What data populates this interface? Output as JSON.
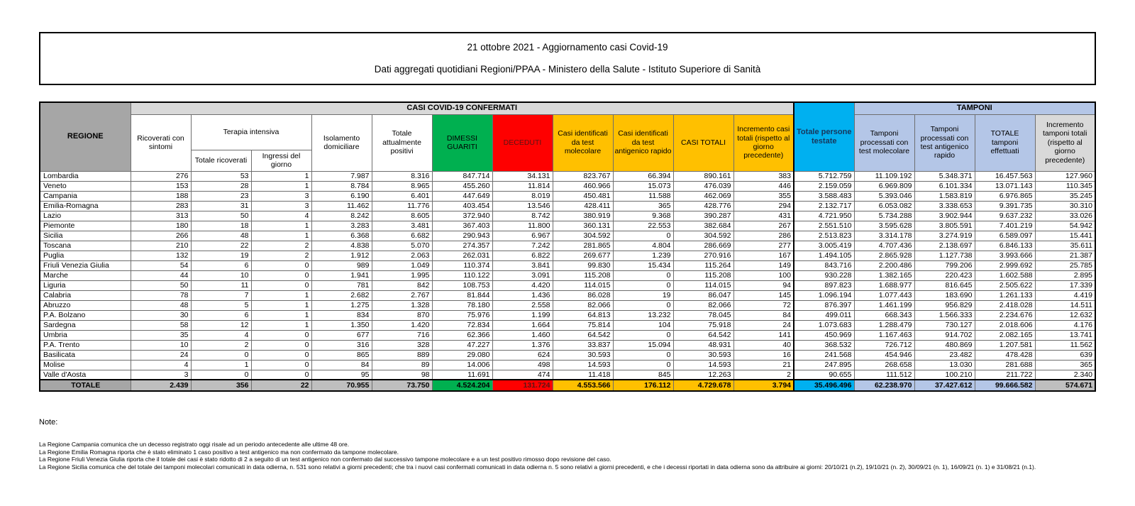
{
  "title": {
    "line1": "21 ottobre 2021 - Aggiornamento casi Covid-19",
    "line2": "Dati aggregati quotidiani Regioni/PPAA - Ministero della Salute - Istituto Superiore di Sanità"
  },
  "colors": {
    "green": "#00B050",
    "red": "#FE0000",
    "gold": "#FFC000",
    "cyan": "#00B0F0",
    "periwinkle": "#B4C6E7",
    "header_gray": "#D9D9D9",
    "region_gray": "#A6A6A6",
    "total_gray": "#BFBFBF"
  },
  "table": {
    "group_headers": {
      "regione": "REGIONE",
      "casi": "CASI COVID-19 CONFERMATI",
      "persone_testate": "Totale persone testate",
      "tamponi": "TAMPONI",
      "terapia_intensiva": "Terapia intensiva"
    },
    "columns": [
      "Ricoverati con sintomi",
      "Totale ricoverati",
      "Ingressi del giorno",
      "Isolamento domiciliare",
      "Totale attualmente positivi",
      "DIMESSI GUARITI",
      "DECEDUTI",
      "Casi identificati da test molecolare",
      "Casi identificati da test antigenico rapido",
      "CASI TOTALI",
      "Incremento casi totali (rispetto al giorno precedente)",
      "Tamponi processati con test molecolare",
      "Tamponi processati con test antigenico rapido",
      "TOTALE tamponi effettuati",
      "Incremento tamponi totali (rispetto al giorno precedente)"
    ],
    "rows": [
      {
        "region": "Lombardia",
        "values": [
          "276",
          "53",
          "1",
          "7.987",
          "8.316",
          "847.714",
          "34.131",
          "823.767",
          "66.394",
          "890.161",
          "383",
          "5.712.759",
          "11.109.192",
          "5.348.371",
          "16.457.563",
          "127.960"
        ]
      },
      {
        "region": "Veneto",
        "values": [
          "153",
          "28",
          "1",
          "8.784",
          "8.965",
          "455.260",
          "11.814",
          "460.966",
          "15.073",
          "476.039",
          "446",
          "2.159.059",
          "6.969.809",
          "6.101.334",
          "13.071.143",
          "110.345"
        ]
      },
      {
        "region": "Campania",
        "values": [
          "188",
          "23",
          "3",
          "6.190",
          "6.401",
          "447.649",
          "8.019",
          "450.481",
          "11.588",
          "462.069",
          "355",
          "3.588.483",
          "5.393.046",
          "1.583.819",
          "6.976.865",
          "35.245"
        ]
      },
      {
        "region": "Emilia-Romagna",
        "values": [
          "283",
          "31",
          "3",
          "11.462",
          "11.776",
          "403.454",
          "13.546",
          "428.411",
          "365",
          "428.776",
          "294",
          "2.132.717",
          "6.053.082",
          "3.338.653",
          "9.391.735",
          "30.310"
        ]
      },
      {
        "region": "Lazio",
        "values": [
          "313",
          "50",
          "4",
          "8.242",
          "8.605",
          "372.940",
          "8.742",
          "380.919",
          "9.368",
          "390.287",
          "431",
          "4.721.950",
          "5.734.288",
          "3.902.944",
          "9.637.232",
          "33.026"
        ]
      },
      {
        "region": "Piemonte",
        "values": [
          "180",
          "18",
          "1",
          "3.283",
          "3.481",
          "367.403",
          "11.800",
          "360.131",
          "22.553",
          "382.684",
          "267",
          "2.551.510",
          "3.595.628",
          "3.805.591",
          "7.401.219",
          "54.942"
        ]
      },
      {
        "region": "Sicilia",
        "values": [
          "266",
          "48",
          "1",
          "6.368",
          "6.682",
          "290.943",
          "6.967",
          "304.592",
          "0",
          "304.592",
          "286",
          "2.513.823",
          "3.314.178",
          "3.274.919",
          "6.589.097",
          "15.441"
        ]
      },
      {
        "region": "Toscana",
        "values": [
          "210",
          "22",
          "2",
          "4.838",
          "5.070",
          "274.357",
          "7.242",
          "281.865",
          "4.804",
          "286.669",
          "277",
          "3.005.419",
          "4.707.436",
          "2.138.697",
          "6.846.133",
          "35.611"
        ]
      },
      {
        "region": "Puglia",
        "values": [
          "132",
          "19",
          "2",
          "1.912",
          "2.063",
          "262.031",
          "6.822",
          "269.677",
          "1.239",
          "270.916",
          "167",
          "1.494.105",
          "2.865.928",
          "1.127.738",
          "3.993.666",
          "21.387"
        ]
      },
      {
        "region": "Friuli Venezia Giulia",
        "values": [
          "54",
          "6",
          "0",
          "989",
          "1.049",
          "110.374",
          "3.841",
          "99.830",
          "15.434",
          "115.264",
          "149",
          "843.716",
          "2.200.486",
          "799.206",
          "2.999.692",
          "25.785"
        ]
      },
      {
        "region": "Marche",
        "values": [
          "44",
          "10",
          "0",
          "1.941",
          "1.995",
          "110.122",
          "3.091",
          "115.208",
          "0",
          "115.208",
          "100",
          "930.228",
          "1.382.165",
          "220.423",
          "1.602.588",
          "2.895"
        ]
      },
      {
        "region": "Liguria",
        "values": [
          "50",
          "11",
          "0",
          "781",
          "842",
          "108.753",
          "4.420",
          "114.015",
          "0",
          "114.015",
          "94",
          "897.823",
          "1.688.977",
          "816.645",
          "2.505.622",
          "17.339"
        ]
      },
      {
        "region": "Calabria",
        "values": [
          "78",
          "7",
          "1",
          "2.682",
          "2.767",
          "81.844",
          "1.436",
          "86.028",
          "19",
          "86.047",
          "145",
          "1.096.194",
          "1.077.443",
          "183.690",
          "1.261.133",
          "4.419"
        ]
      },
      {
        "region": "Abruzzo",
        "values": [
          "48",
          "5",
          "1",
          "1.275",
          "1.328",
          "78.180",
          "2.558",
          "82.066",
          "0",
          "82.066",
          "72",
          "876.397",
          "1.461.199",
          "956.829",
          "2.418.028",
          "14.511"
        ]
      },
      {
        "region": "P.A. Bolzano",
        "values": [
          "30",
          "6",
          "1",
          "834",
          "870",
          "75.976",
          "1.199",
          "64.813",
          "13.232",
          "78.045",
          "84",
          "499.011",
          "668.343",
          "1.566.333",
          "2.234.676",
          "12.632"
        ]
      },
      {
        "region": "Sardegna",
        "values": [
          "58",
          "12",
          "1",
          "1.350",
          "1.420",
          "72.834",
          "1.664",
          "75.814",
          "104",
          "75.918",
          "24",
          "1.073.683",
          "1.288.479",
          "730.127",
          "2.018.606",
          "4.176"
        ]
      },
      {
        "region": "Umbria",
        "values": [
          "35",
          "4",
          "0",
          "677",
          "716",
          "62.366",
          "1.460",
          "64.542",
          "0",
          "64.542",
          "141",
          "450.969",
          "1.167.463",
          "914.702",
          "2.082.165",
          "13.741"
        ]
      },
      {
        "region": "P.A. Trento",
        "values": [
          "10",
          "2",
          "0",
          "316",
          "328",
          "47.227",
          "1.376",
          "33.837",
          "15.094",
          "48.931",
          "40",
          "368.532",
          "726.712",
          "480.869",
          "1.207.581",
          "11.562"
        ]
      },
      {
        "region": "Basilicata",
        "values": [
          "24",
          "0",
          "0",
          "865",
          "889",
          "29.080",
          "624",
          "30.593",
          "0",
          "30.593",
          "16",
          "241.568",
          "454.946",
          "23.482",
          "478.428",
          "639"
        ]
      },
      {
        "region": "Molise",
        "values": [
          "4",
          "1",
          "0",
          "84",
          "89",
          "14.006",
          "498",
          "14.593",
          "0",
          "14.593",
          "21",
          "247.895",
          "268.658",
          "13.030",
          "281.688",
          "365"
        ]
      },
      {
        "region": "Valle d'Aosta",
        "values": [
          "3",
          "0",
          "0",
          "95",
          "98",
          "11.691",
          "474",
          "11.418",
          "845",
          "12.263",
          "2",
          "90.655",
          "111.512",
          "100.210",
          "211.722",
          "2.340"
        ]
      }
    ],
    "total_row": {
      "label": "TOTALE",
      "values": [
        "2.439",
        "356",
        "22",
        "70.955",
        "73.750",
        "4.524.204",
        "131.724",
        "4.553.566",
        "176.112",
        "4.729.678",
        "3.794",
        "35.496.496",
        "62.238.970",
        "37.427.612",
        "99.666.582",
        "574.671"
      ]
    }
  },
  "notes": {
    "heading": "Note:",
    "lines": [
      "La Regione Campania comunica che un decesso registrato oggi risale ad un periodo antecedente alle ultime 48 ore.",
      "La Regione Emilia  Romagna riporta che è stato eliminato 1 caso positivo a test antigenico ma non confermato da tampone molecolare.",
      "La Regione Friuli Venezia Giulia riporta che il totale dei casi è stato ridotto di 2 a seguito di un test antigenico non confermato dal successivo tampone molecolare e a un test positivo rimosso dopo revisione del caso.",
      "La Regione Sicilia comunica che del totale dei tamponi molecolari comunicati in data odierna, n. 531 sono relativi a giorni precedenti; che tra i nuovi casi confermati comunicati in data odierna n. 5 sono relativi a giorni precedenti, e che i decessi riportati in data odierna sono da attribuire ai giorni: 20/10/21 (n.2), 19/10/21 (n. 2), 30/09/21 (n. 1), 16/09/21 (n. 1) e 31/08/21 (n.1)."
    ]
  }
}
